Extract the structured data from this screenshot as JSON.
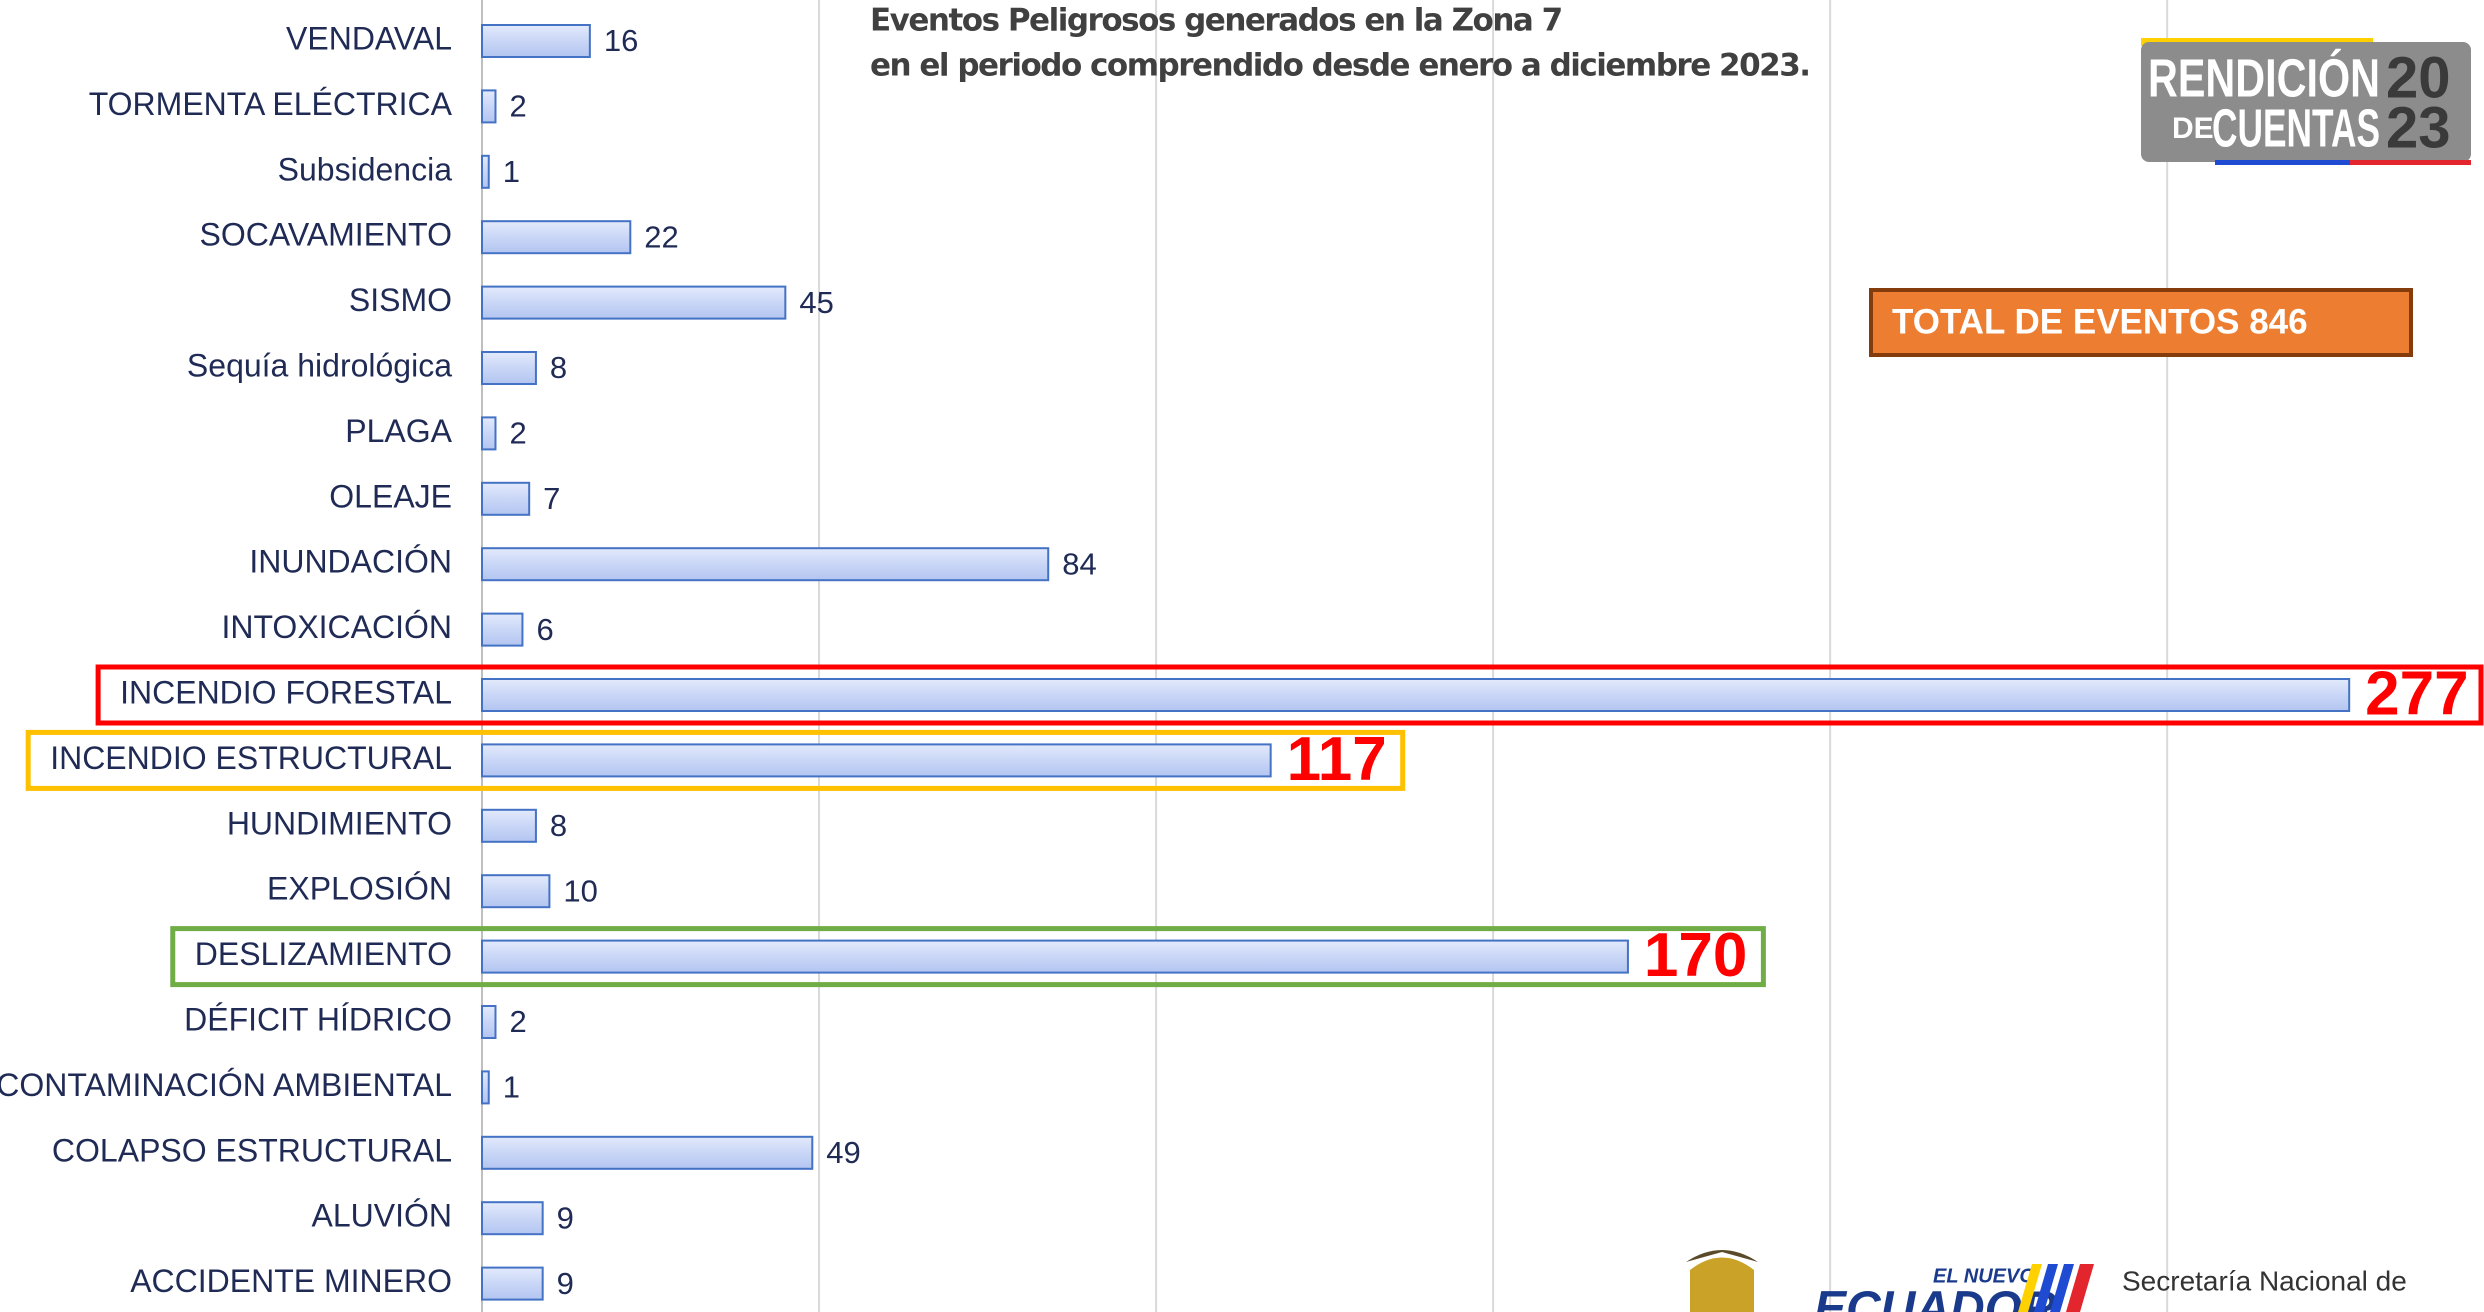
{
  "chart_data": {
    "type": "barh",
    "title_lines": [
      "Eventos Peligrosos generados en la Zona 7",
      "en el periodo comprendido desde enero a diciembre 2023."
    ],
    "categories": [
      "VENDAVAL",
      "TORMENTA ELÉCTRICA",
      "Subsidencia",
      "SOCAVAMIENTO",
      "SISMO",
      "Sequía hidrológica",
      "PLAGA",
      "OLEAJE",
      "INUNDACIÓN",
      "INTOXICACIÓN",
      "INCENDIO FORESTAL",
      "INCENDIO ESTRUCTURAL",
      "HUNDIMIENTO",
      "EXPLOSIÓN",
      "DESLIZAMIENTO",
      "DÉFICIT HÍDRICO",
      "CONTAMINACIÓN AMBIENTAL",
      "COLAPSO ESTRUCTURAL",
      "ALUVIÓN",
      "ACCIDENTE MINERO"
    ],
    "values": [
      16,
      2,
      1,
      22,
      45,
      8,
      2,
      7,
      84,
      6,
      277,
      117,
      8,
      10,
      170,
      2,
      1,
      49,
      9,
      9
    ],
    "highlight_colors": [
      null,
      null,
      null,
      null,
      null,
      null,
      null,
      null,
      null,
      null,
      "#ff0000",
      "#ffc000",
      null,
      null,
      "#70ad47",
      null,
      null,
      null,
      null,
      null
    ],
    "color": "#c9d6f6",
    "xlim": [
      0,
      297
    ],
    "xticks": [
      0,
      50,
      100,
      150,
      200,
      250
    ],
    "grid": true,
    "annotation": "TOTAL DE EVENTOS 846",
    "logo": {
      "line1": "RENDICIÓN",
      "line2a": "DE",
      "line2b": "CUENTAS",
      "year1": "20",
      "year2": "23"
    },
    "footer": {
      "tag": "EL NUEVO",
      "brand": "ECUADOR",
      "agency": "Secretaría Nacional de"
    }
  }
}
